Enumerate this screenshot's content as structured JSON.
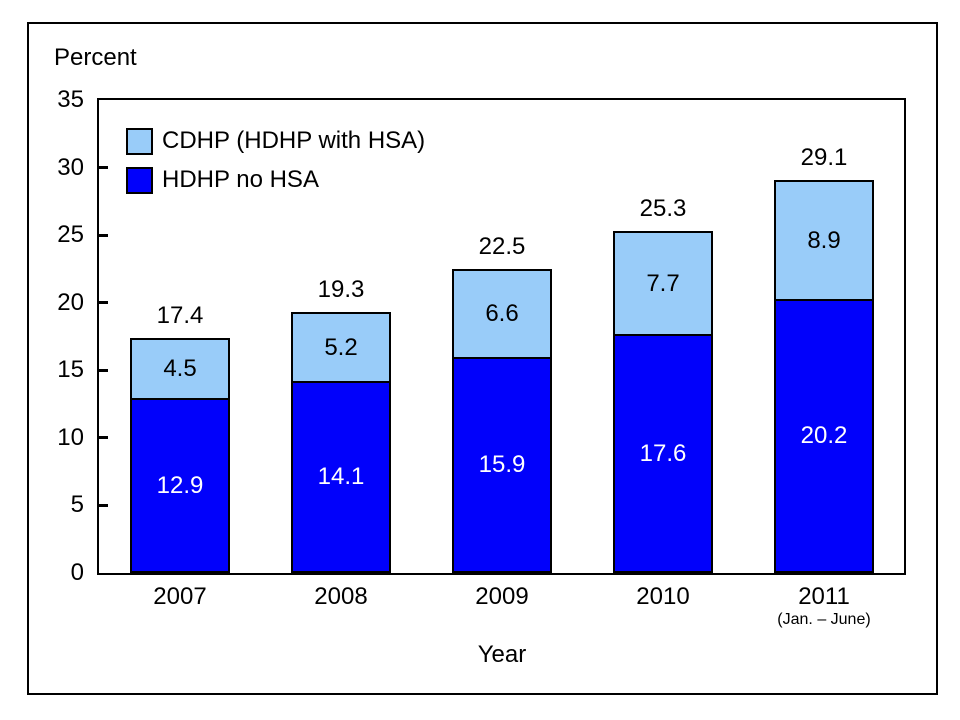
{
  "figure": {
    "y_axis_title": "Percent",
    "x_axis_title": "Year",
    "background_color": "#FFFFFF",
    "border_color": "#000000"
  },
  "chart_data": {
    "type": "bar",
    "stacked": true,
    "title": "",
    "xlabel": "Year",
    "ylabel": "Percent",
    "ylim": [
      0,
      35
    ],
    "yticks": [
      0,
      5,
      10,
      15,
      20,
      25,
      30,
      35
    ],
    "grid": false,
    "legend_position": "top-left-inside",
    "categories": [
      "2007",
      "2008",
      "2009",
      "2010",
      "2011"
    ],
    "category_sublabels": [
      "",
      "",
      "",
      "",
      "(Jan. – June)"
    ],
    "series": [
      {
        "name": "HDHP no HSA",
        "color": "#0101FB",
        "text_color": "#FFFFFF",
        "values": [
          12.9,
          14.1,
          15.9,
          17.6,
          20.2
        ]
      },
      {
        "name": "CDHP (HDHP with HSA)",
        "color": "#99CCF9",
        "text_color": "#000000",
        "values": [
          4.5,
          5.2,
          6.6,
          7.7,
          8.9
        ]
      }
    ],
    "totals": [
      17.4,
      19.3,
      22.5,
      25.3,
      29.1
    ],
    "legend": [
      {
        "label": "CDHP (HDHP with HSA)",
        "color": "#99CCF9"
      },
      {
        "label": "HDHP no HSA",
        "color": "#0101FB"
      }
    ]
  }
}
